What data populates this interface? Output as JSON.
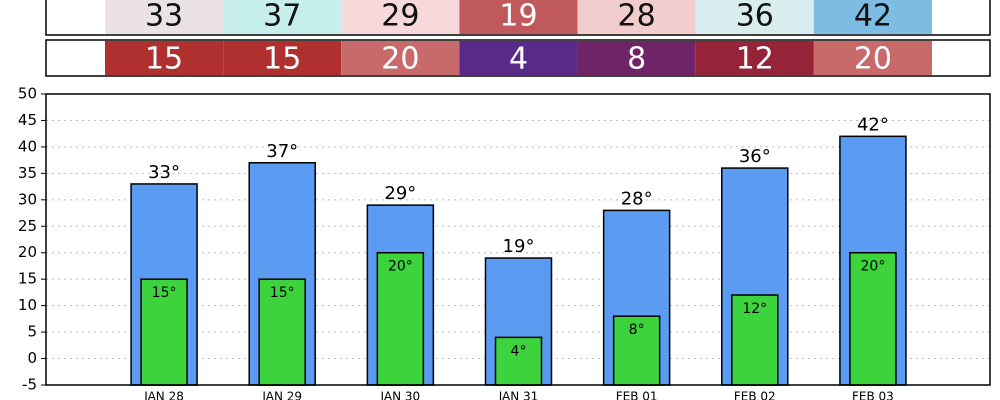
{
  "chart_data": {
    "type": "bar",
    "categories": [
      "JAN 28",
      "JAN 29",
      "JAN 30",
      "JAN 31",
      "FEB 01",
      "FEB 02",
      "FEB 03"
    ],
    "series": [
      {
        "color": "#5b9cf2",
        "values": [
          33,
          37,
          29,
          19,
          28,
          36,
          42
        ],
        "value_labels": [
          "33°",
          "37°",
          "29°",
          "19°",
          "28°",
          "36°",
          "42°"
        ],
        "cell_colors": [
          "#ebe3e3",
          "#c5eeec",
          "#f7d9db",
          "#c0595b",
          "#f2cdcd",
          "#d8eeee",
          "#7dbde3"
        ]
      },
      {
        "color": "#3cd33c",
        "values": [
          15,
          15,
          20,
          4,
          8,
          12,
          20
        ],
        "value_labels": [
          "15°",
          "15°",
          "20°",
          "4°",
          "8°",
          "12°",
          "20°"
        ],
        "cell_colors": [
          "#b03030",
          "#b03030",
          "#c96a6a",
          "#5a2a8a",
          "#6f2468",
          "#962438",
          "#c96a6a"
        ]
      }
    ],
    "ylim": [
      -5,
      50
    ],
    "yticks": [
      -5,
      0,
      5,
      10,
      15,
      20,
      25,
      30,
      35,
      40,
      45,
      50
    ],
    "grid": true
  }
}
